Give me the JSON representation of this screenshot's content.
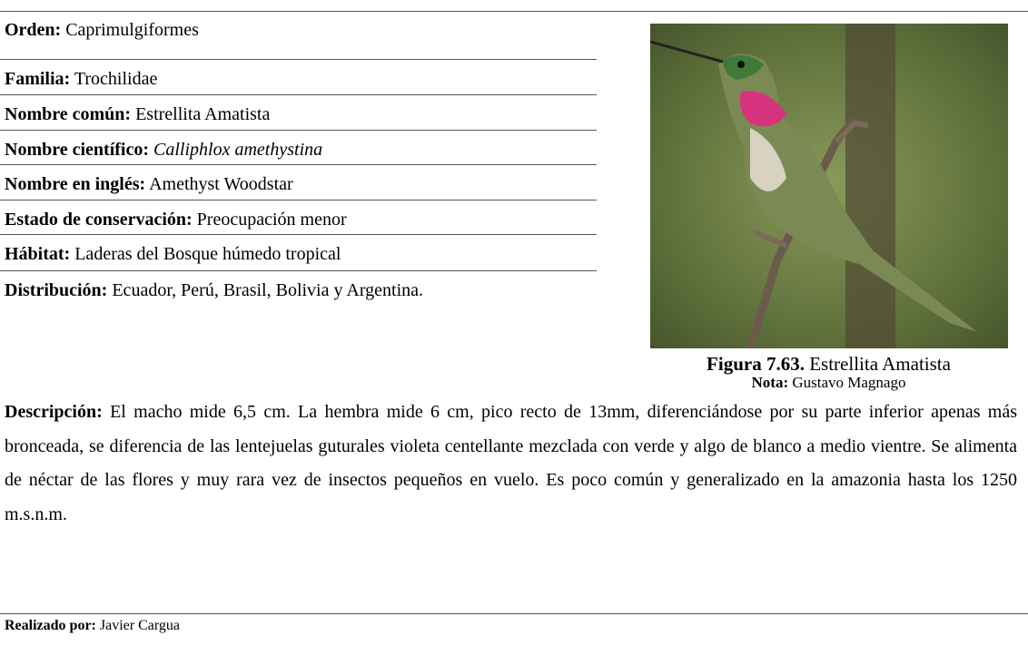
{
  "fields": [
    {
      "label": "Orden:",
      "value": "Caprimulgiformes"
    },
    {
      "label": "Familia:",
      "value": "Trochilidae"
    },
    {
      "label": "Nombre común:",
      "value": "Estrellita Amatista"
    },
    {
      "label": "Nombre científico:",
      "value": "Calliphlox amethystina"
    },
    {
      "label": "Nombre en inglés:",
      "value": "Amethyst Woodstar"
    },
    {
      "label": "Estado de conservación:",
      "value": "Preocupación menor"
    },
    {
      "label": "Hábitat:",
      "value": "Laderas del Bosque húmedo tropical"
    },
    {
      "label": "Distribución:",
      "value": "Ecuador, Perú, Brasil, Bolivia y Argentina."
    }
  ],
  "figure": {
    "caption_label": "Figura 7.63.",
    "caption_text": "Estrellita Amatista",
    "note_label": "Nota:",
    "note_text": "Gustavo Magnago"
  },
  "description": {
    "label": "Descripción:",
    "text": "El macho mide 6,5 cm. La hembra mide 6 cm, pico recto de 13mm, diferenciándose por su parte inferior apenas más bronceada, se diferencia de las lentejuelas guturales violeta centellante mezclada con verde y algo de blanco a medio vientre. Se alimenta de néctar de las flores y muy rara vez de insectos pequeños en vuelo. Es poco común y generalizado en la amazonia hasta los 1250 m.s.n.m."
  },
  "footer": {
    "label": "Realizado por:",
    "value": "Javier Cargua"
  }
}
